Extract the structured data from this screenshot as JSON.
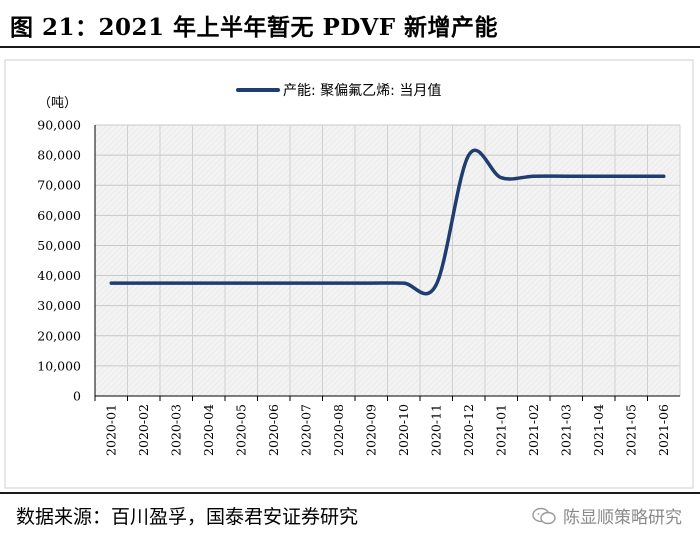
{
  "figure": {
    "title": "图 21：2021 年上半年暂无 PDVF 新增产能",
    "source": "数据来源：百川盈孚，国泰君安证券研究",
    "watermark": "陈显顺策略研究"
  },
  "chart_data": {
    "type": "line",
    "title": "",
    "ylabel": "（吨）",
    "xlabel": "",
    "ylim": [
      0,
      90000
    ],
    "yticks": [
      0,
      10000,
      20000,
      30000,
      40000,
      50000,
      60000,
      70000,
      80000,
      90000
    ],
    "ytick_labels": [
      "0",
      "10,000",
      "20,000",
      "30,000",
      "40,000",
      "50,000",
      "60,000",
      "70,000",
      "80,000",
      "90,000"
    ],
    "categories": [
      "2020-01",
      "2020-02",
      "2020-03",
      "2020-04",
      "2020-05",
      "2020-06",
      "2020-07",
      "2020-08",
      "2020-09",
      "2020-10",
      "2020-11",
      "2020-12",
      "2021-01",
      "2021-02",
      "2021-03",
      "2021-04",
      "2021-05",
      "2021-06"
    ],
    "series": [
      {
        "name": "产能: 聚偏氟乙烯: 当月值",
        "color": "#1f3d6e",
        "values": [
          37500,
          37500,
          37500,
          37500,
          37500,
          37500,
          37500,
          37500,
          37500,
          37500,
          37000,
          80000,
          72500,
          73000,
          73000,
          73000,
          73000,
          73000
        ]
      }
    ],
    "legend_position": "top-center",
    "grid": true,
    "plot_background": "hatched-gray"
  }
}
